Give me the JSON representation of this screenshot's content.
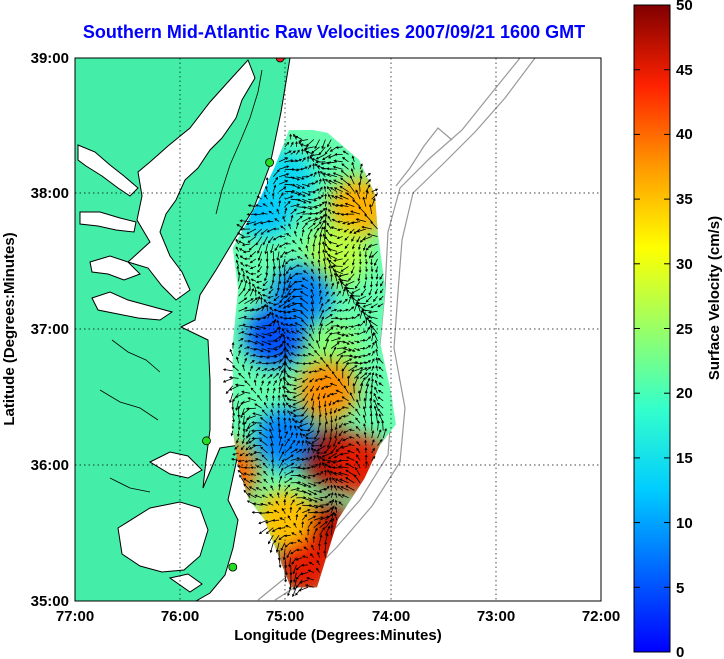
{
  "title": "Southern Mid-Atlantic Raw Velocities 2007/09/21 1600 GMT",
  "x_axis": {
    "label": "Longitude (Degrees:Minutes)",
    "ticks": [
      "77:00",
      "76:00",
      "75:00",
      "74:00",
      "73:00",
      "72:00"
    ],
    "range": [
      -77,
      -72
    ]
  },
  "y_axis": {
    "label": "Latitude (Degrees:Minutes)",
    "ticks": [
      "39:00",
      "38:00",
      "37:00",
      "36:00",
      "35:00"
    ],
    "range": [
      35,
      39
    ]
  },
  "colorbar": {
    "label": "Surface Velocity (cm/s)",
    "ticks": [
      "50",
      "45",
      "40",
      "35",
      "30",
      "25",
      "20",
      "15",
      "10",
      "5",
      "0"
    ],
    "range": [
      0,
      50
    ],
    "colormap": "jet"
  },
  "colors": {
    "land": "#44eea8",
    "coast": "#000000",
    "bathymetry": "#999999",
    "station_active": "#22dd22",
    "station_inactive": "#ee2222",
    "title": "#0000ff"
  },
  "stations": [
    {
      "lon": -75.05,
      "lat": 39.0,
      "status": "inactive"
    },
    {
      "lon": -75.15,
      "lat": 38.23,
      "status": "active"
    },
    {
      "lon": -75.75,
      "lat": 36.18,
      "status": "active"
    },
    {
      "lon": -75.5,
      "lat": 35.25,
      "status": "active"
    }
  ],
  "chart_data": {
    "type": "heatmap",
    "title": "Southern Mid-Atlantic Raw Velocities 2007/09/21 1600 GMT",
    "xlabel": "Longitude (Degrees:Minutes)",
    "ylabel": "Latitude (Degrees:Minutes)",
    "xlim": [
      -77,
      -72
    ],
    "ylim": [
      35,
      39
    ],
    "value_label": "Surface Velocity (cm/s)",
    "value_range": [
      0,
      50
    ],
    "grid": true,
    "hotspots": [
      {
        "lon": -74.3,
        "lat": 37.9,
        "speed": 36
      },
      {
        "lon": -74.5,
        "lat": 37.55,
        "speed": 27
      },
      {
        "lon": -74.55,
        "lat": 36.85,
        "speed": 24
      },
      {
        "lon": -74.6,
        "lat": 36.55,
        "speed": 38
      },
      {
        "lon": -74.55,
        "lat": 36.05,
        "speed": 48
      },
      {
        "lon": -74.3,
        "lat": 36.0,
        "speed": 45
      },
      {
        "lon": -74.6,
        "lat": 35.5,
        "speed": 47
      },
      {
        "lon": -74.8,
        "lat": 35.25,
        "speed": 45
      },
      {
        "lon": -75.55,
        "lat": 35.95,
        "speed": 40
      },
      {
        "lon": -75.0,
        "lat": 35.6,
        "speed": 35
      },
      {
        "lon": -75.1,
        "lat": 36.95,
        "speed": 5
      },
      {
        "lon": -74.85,
        "lat": 37.25,
        "speed": 8
      },
      {
        "lon": -75.0,
        "lat": 36.2,
        "speed": 8
      },
      {
        "lon": -75.2,
        "lat": 37.9,
        "speed": 12
      },
      {
        "lon": -75.0,
        "lat": 38.1,
        "speed": 14
      }
    ],
    "vectors": {
      "lon_range": [
        -75.5,
        -74.05
      ],
      "lat_range": [
        35.1,
        38.4
      ],
      "spacing_deg": 0.055,
      "unit": "cm/s"
    }
  }
}
